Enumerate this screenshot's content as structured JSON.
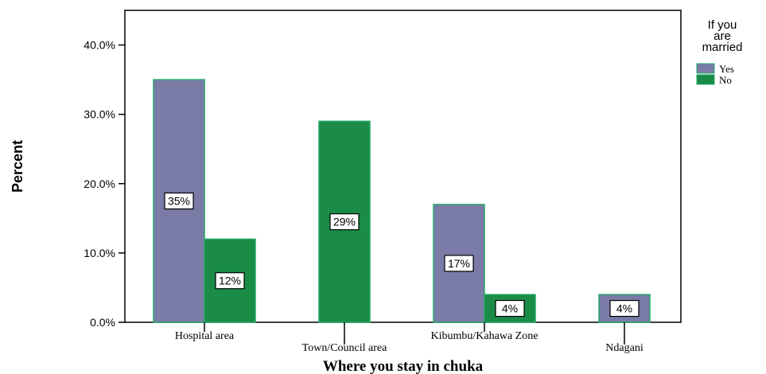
{
  "chart_data": {
    "type": "bar",
    "xlabel": "Where you stay in chuka",
    "ylabel": "Percent",
    "ylim": [
      0,
      45
    ],
    "yticks": [
      0,
      10,
      20,
      30,
      40
    ],
    "ytick_labels": [
      "0.0%",
      "10.0%",
      "20.0%",
      "30.0%",
      "40.0%"
    ],
    "categories": [
      "Hospital area",
      "Town/Council area",
      "Kibumbu/Kahawa Zone",
      "Ndagani"
    ],
    "legend_title": "If you are married",
    "legend_position": "top-right",
    "grid": false,
    "series": [
      {
        "name": "Yes",
        "color": "#7b7ba8",
        "values": [
          35,
          null,
          17,
          4
        ],
        "labels": [
          "35%",
          "",
          "17%",
          "4%"
        ]
      },
      {
        "name": "No",
        "color": "#1a8c47",
        "values": [
          12,
          29,
          4,
          null
        ],
        "labels": [
          "12%",
          "29%",
          "4%",
          ""
        ]
      }
    ]
  }
}
